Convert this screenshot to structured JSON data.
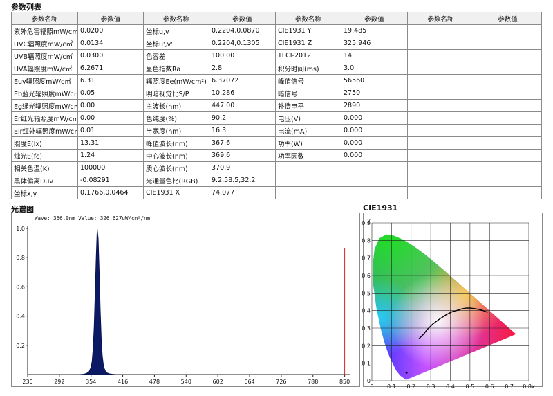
{
  "params_title": "参数列表",
  "header_name": "参数名称",
  "header_value": "参数值",
  "rows": [
    [
      [
        "紫外危害辐照mW/c㎡",
        "0.0200"
      ],
      [
        "坐标u,v",
        "0.2204,0.0870"
      ],
      [
        "CIE1931 Y",
        "19.485"
      ],
      [
        "",
        ""
      ]
    ],
    [
      [
        "UVC辐照度mW/c㎡",
        "0.0134"
      ],
      [
        "坐标u',v'",
        "0.2204,0.1305"
      ],
      [
        "CIE1931 Z",
        "325.946"
      ],
      [
        "",
        ""
      ]
    ],
    [
      [
        "UVB辐照度mW/c㎡",
        "0.0300"
      ],
      [
        "色容差",
        "100.00"
      ],
      [
        "TLCI-2012",
        "14"
      ],
      [
        "",
        ""
      ]
    ],
    [
      [
        "UVA辐照度mW/c㎡",
        "6.2671"
      ],
      [
        "显色指数Ra",
        "2.8"
      ],
      [
        "积分时间(ms)",
        "3.0"
      ],
      [
        "",
        ""
      ]
    ],
    [
      [
        "Euv辐照度mW/c㎡",
        "6.31"
      ],
      [
        "辐照度Ee(mW/cm²)",
        "6.37072"
      ],
      [
        "峰值信号",
        "56560"
      ],
      [
        "",
        ""
      ]
    ],
    [
      [
        "Eb蓝光辐照度mW/c㎡",
        "0.05"
      ],
      [
        "明暗视觉比S/P",
        "10.286"
      ],
      [
        "暗信号",
        "2750"
      ],
      [
        "",
        ""
      ]
    ],
    [
      [
        "Eg绿光辐照度mW/c㎡",
        "0.00"
      ],
      [
        "主波长(nm)",
        "447.00"
      ],
      [
        "补偿电平",
        "2890"
      ],
      [
        "",
        ""
      ]
    ],
    [
      [
        "Er红光辐照度mW/c㎡",
        "0.00"
      ],
      [
        "色纯度(%)",
        "90.2"
      ],
      [
        "电压(V)",
        "0.000"
      ],
      [
        "",
        ""
      ]
    ],
    [
      [
        "Eir红外辐照度mW/c㎡",
        "0.01"
      ],
      [
        "半宽度(nm)",
        "16.3"
      ],
      [
        "电流(mA)",
        "0.000"
      ],
      [
        "",
        ""
      ]
    ],
    [
      [
        "照度E(lx)",
        "13.31"
      ],
      [
        "峰值波长(nm)",
        "367.6"
      ],
      [
        "功率(W)",
        "0.000"
      ],
      [
        "",
        ""
      ]
    ],
    [
      [
        "烛光E(fc)",
        "1.24"
      ],
      [
        "中心波长(nm)",
        "369.6"
      ],
      [
        "功率因数",
        "0.000"
      ],
      [
        "",
        ""
      ]
    ],
    [
      [
        "相关色温(K)",
        "100000"
      ],
      [
        "质心波长(nm)",
        "370.9"
      ],
      [
        "",
        ""
      ],
      [
        "",
        ""
      ]
    ],
    [
      [
        "黑体偏离Duv",
        "-0.08291"
      ],
      [
        "光通量色比(RGB)",
        "9.2,58.5,32.2"
      ],
      [
        "",
        ""
      ],
      [
        "",
        ""
      ]
    ],
    [
      [
        "坐标x,y",
        "0.1766,0.0464"
      ],
      [
        "CIE1931 X",
        "74.077"
      ],
      [
        "",
        ""
      ],
      [
        "",
        ""
      ]
    ]
  ],
  "spectrum_title": "光谱图",
  "wave_readout": "Wave: 366.0nm Value: 326.627uW/cm²/nm",
  "cie_title": "CIE1931",
  "chart_data": [
    {
      "type": "area",
      "xlim": [
        230,
        860
      ],
      "ylim": [
        0,
        1.0
      ],
      "x_ticks": [
        "230",
        "292",
        "354",
        "416",
        "478",
        "540",
        "602",
        "664",
        "726",
        "788",
        "850"
      ],
      "y_ticks": [
        "1.0",
        "0.8",
        "0.6",
        "0.4",
        "0.2"
      ],
      "series": [
        {
          "x": [
            330,
            340,
            345,
            350,
            354,
            356,
            358,
            360,
            362,
            364,
            366,
            368,
            370,
            372,
            374,
            376,
            378,
            380,
            382,
            385,
            390,
            395,
            400,
            410
          ],
          "y": [
            0,
            0.003,
            0.008,
            0.02,
            0.05,
            0.09,
            0.18,
            0.33,
            0.55,
            0.8,
            1.0,
            0.93,
            0.7,
            0.45,
            0.25,
            0.13,
            0.07,
            0.04,
            0.025,
            0.012,
            0.005,
            0.003,
            0.001,
            0
          ],
          "color": "#0c1a66"
        }
      ],
      "cursor_x": 850
    },
    {
      "type": "scatter",
      "xlabel": "x",
      "ylabel": "y",
      "xlim": [
        0,
        0.8
      ],
      "ylim": [
        0,
        0.9
      ],
      "x_ticks": [
        "0",
        "0.1",
        "0.2",
        "0.3",
        "0.4",
        "0.5",
        "0.6",
        "0.7",
        "0.8x"
      ],
      "y_ticks": [
        "0.9",
        "0.8",
        "0.7",
        "0.6",
        "0.5",
        "0.4",
        "0.3",
        "0.2",
        "0.1",
        "0"
      ],
      "locus": [
        [
          0.1741,
          0.005
        ],
        [
          0.144,
          0.0297
        ],
        [
          0.1241,
          0.0578
        ],
        [
          0.0913,
          0.1327
        ],
        [
          0.0687,
          0.2007
        ],
        [
          0.0454,
          0.295
        ],
        [
          0.0235,
          0.4127
        ],
        [
          0.0082,
          0.5384
        ],
        [
          0.0039,
          0.6548
        ],
        [
          0.0139,
          0.7502
        ],
        [
          0.0389,
          0.812
        ],
        [
          0.0743,
          0.8338
        ],
        [
          0.1142,
          0.8262
        ],
        [
          0.1547,
          0.8059
        ],
        [
          0.1929,
          0.7816
        ],
        [
          0.2296,
          0.7543
        ],
        [
          0.2658,
          0.7243
        ],
        [
          0.3016,
          0.6923
        ],
        [
          0.3373,
          0.6589
        ],
        [
          0.3731,
          0.6245
        ],
        [
          0.4087,
          0.5896
        ],
        [
          0.4441,
          0.5547
        ],
        [
          0.4788,
          0.5202
        ],
        [
          0.5125,
          0.4866
        ],
        [
          0.5448,
          0.4544
        ],
        [
          0.5752,
          0.4242
        ],
        [
          0.6029,
          0.3965
        ],
        [
          0.627,
          0.3725
        ],
        [
          0.6482,
          0.3514
        ],
        [
          0.6658,
          0.334
        ],
        [
          0.6801,
          0.3197
        ],
        [
          0.6915,
          0.3083
        ],
        [
          0.7006,
          0.2993
        ],
        [
          0.7079,
          0.292
        ],
        [
          0.714,
          0.2859
        ],
        [
          0.719,
          0.2809
        ],
        [
          0.7347,
          0.2653
        ]
      ],
      "planckian": [
        [
          0.24,
          0.24
        ],
        [
          0.265,
          0.267
        ],
        [
          0.28,
          0.29
        ],
        [
          0.31,
          0.323
        ],
        [
          0.345,
          0.352
        ],
        [
          0.38,
          0.377
        ],
        [
          0.41,
          0.394
        ],
        [
          0.44,
          0.403
        ],
        [
          0.46,
          0.41
        ],
        [
          0.48,
          0.414
        ],
        [
          0.5,
          0.415
        ],
        [
          0.53,
          0.41
        ],
        [
          0.56,
          0.403
        ],
        [
          0.59,
          0.39
        ]
      ],
      "point": [
        0.1766,
        0.0464
      ]
    }
  ]
}
